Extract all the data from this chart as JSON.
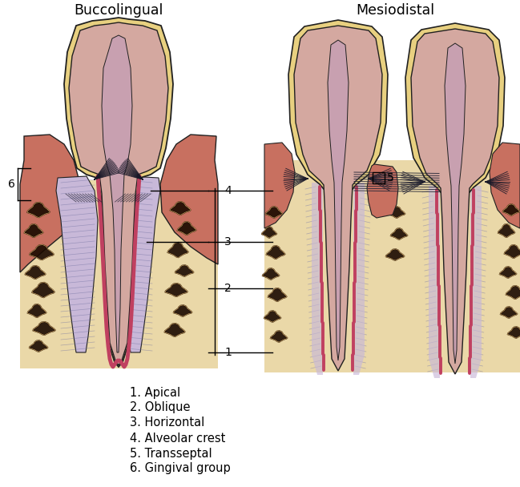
{
  "title_left": "Buccolingual",
  "title_right": "Mesiodistal",
  "background_color": "#FFFFFF",
  "legend": [
    "1. Apical",
    "2. Oblique",
    "3. Horizontal",
    "4. Alveolar crest",
    "5. Transseptal",
    "6. Gingival group"
  ],
  "colors": {
    "enamel": "#E8D080",
    "dentin": "#D4A8A0",
    "pulp": "#C8A0A8",
    "pdl": "#C8B8D8",
    "cementum": "#C04060",
    "bone_bg": "#EAD8A8",
    "gingiva": "#C87060",
    "outline": "#202020",
    "fiber_dark": "#303030",
    "bone_blob": "#1A0A00",
    "bone_blob_edge": "#C8A060",
    "white": "#FFFFFF"
  }
}
